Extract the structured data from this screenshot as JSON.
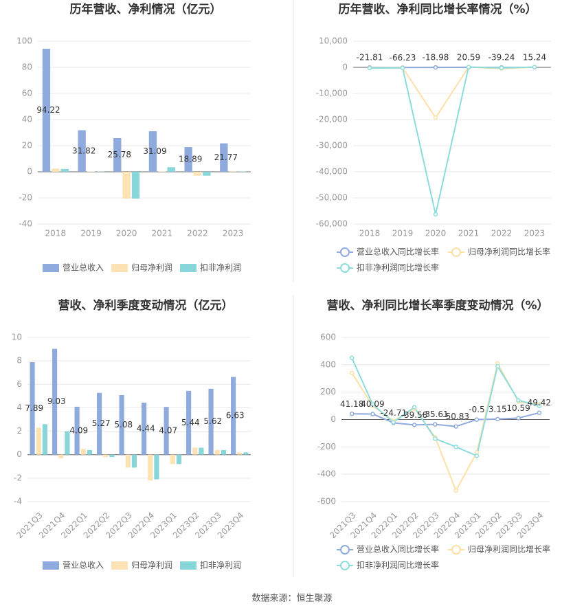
{
  "chart_data": [
    {
      "type": "bar",
      "title": "历年营收、净利情况（亿元）",
      "categories": [
        "2018",
        "2019",
        "2020",
        "2021",
        "2022",
        "2023"
      ],
      "series": [
        {
          "name": "营业总收入",
          "color": "#8faadc",
          "values": [
            94.22,
            31.82,
            25.78,
            31.09,
            18.89,
            21.77
          ],
          "labels": true
        },
        {
          "name": "归母净利润",
          "color": "#fde2b3",
          "values": [
            2.5,
            0.3,
            -20.5,
            0.3,
            -3.0,
            0.5
          ]
        },
        {
          "name": "扣非净利润",
          "color": "#88d6d9",
          "values": [
            2.2,
            0.2,
            -20.5,
            3.5,
            -3.0,
            0.3
          ]
        }
      ],
      "ylim": [
        -40,
        100
      ],
      "yticks": [
        -40,
        -20,
        0,
        20,
        40,
        60,
        80,
        100
      ],
      "grid": true
    },
    {
      "type": "line",
      "title": "历年营收、净利同比增长率情况（%）",
      "categories": [
        "2018",
        "2019",
        "2020",
        "2021",
        "2022",
        "2023"
      ],
      "series": [
        {
          "name": "营业总收入同比增长率",
          "color": "#8faadc",
          "values": [
            -21.81,
            -66.23,
            -18.98,
            20.59,
            -39.24,
            15.24
          ],
          "labels": true
        },
        {
          "name": "归母净利润同比增长率",
          "color": "#fde0a8",
          "values": [
            -200,
            -100,
            -19300,
            100,
            -500,
            100
          ]
        },
        {
          "name": "扣非净利润同比增长率",
          "color": "#8ddcdc",
          "values": [
            -300,
            -200,
            -56300,
            100,
            -200,
            100
          ]
        }
      ],
      "ylim": [
        -60000,
        10000
      ],
      "yticks": [
        {
          "value": -60000,
          "label": "-60,000"
        },
        {
          "value": -50000,
          "label": "-50,000"
        },
        {
          "value": -40000,
          "label": "-40,000"
        },
        {
          "value": -30000,
          "label": "-30,000"
        },
        {
          "value": -20000,
          "label": "-20,000"
        },
        {
          "value": -10000,
          "label": "-10,000"
        },
        0,
        {
          "value": 10000,
          "label": "10,000"
        }
      ],
      "grid": true
    },
    {
      "type": "bar",
      "title": "营收、净利季度变动情况（亿元）",
      "categories": [
        "2021Q3",
        "2021Q4",
        "2022Q1",
        "2022Q2",
        "2022Q3",
        "2022Q4",
        "2023Q1",
        "2023Q2",
        "2023Q3",
        "2023Q4"
      ],
      "series": [
        {
          "name": "营业总收入",
          "color": "#8faadc",
          "values": [
            7.89,
            9.03,
            4.09,
            5.27,
            5.08,
            4.44,
            4.07,
            5.44,
            5.62,
            6.63
          ],
          "labels": true
        },
        {
          "name": "归母净利润",
          "color": "#fde2b3",
          "values": [
            2.3,
            -0.3,
            0.5,
            -0.2,
            -1.1,
            -2.2,
            -0.8,
            0.6,
            0.4,
            0.2
          ]
        },
        {
          "name": "扣非净利润",
          "color": "#88d6d9",
          "values": [
            2.6,
            2.0,
            0.4,
            -0.2,
            -1.1,
            -2.1,
            -0.8,
            0.6,
            0.4,
            0.2
          ]
        }
      ],
      "ylim": [
        -4,
        10
      ],
      "yticks": [
        -4,
        -2,
        0,
        2,
        4,
        6,
        8,
        10
      ],
      "grid": true
    },
    {
      "type": "line",
      "title": "营收、净利同比增长率季度变动情况（%）",
      "categories": [
        "2021Q3",
        "2021Q4",
        "2022Q1",
        "2022Q2",
        "2022Q3",
        "2022Q4",
        "2023Q1",
        "2023Q2",
        "2023Q3",
        "2023Q4"
      ],
      "series": [
        {
          "name": "营业总收入同比增长率",
          "color": "#8faadc",
          "values": [
            41.18,
            40.09,
            -24.71,
            -39.58,
            -35.61,
            -50.83,
            -0.5,
            3.15,
            10.59,
            49.42
          ],
          "labels": true
        },
        {
          "name": "归母净利润同比增长率",
          "color": "#fde0a8",
          "values": [
            340,
            100,
            -10,
            80,
            -130,
            -520,
            -240,
            410,
            130,
            110
          ]
        },
        {
          "name": "扣非净利润同比增长率",
          "color": "#8ddcdc",
          "values": [
            450,
            110,
            -20,
            90,
            -140,
            -200,
            -265,
            390,
            140,
            100
          ]
        }
      ],
      "ylim": [
        -600,
        600
      ],
      "yticks": [
        -600,
        -400,
        -200,
        0,
        200,
        400,
        600
      ],
      "grid": true
    }
  ],
  "source": "数据来源：恒生聚源"
}
